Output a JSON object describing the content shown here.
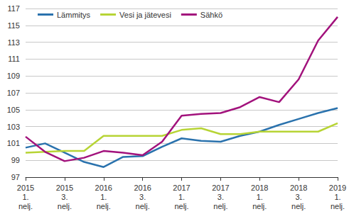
{
  "chart_data": {
    "type": "line",
    "categories": [
      "2015\n1.\nnelj.",
      null,
      "2015\n3.\nnelj.",
      null,
      "2016\n1.\nnelj.",
      null,
      "2016\n3.\nnelj.",
      null,
      "2017\n1.\nnelj.",
      null,
      "2017\n3.\nnelj.",
      null,
      "2018\n1.\nnelj.",
      null,
      "2018\n3.\nnelj.",
      null,
      "2019\n1.\nnelj."
    ],
    "series": [
      {
        "name": "Lämmitys",
        "color": "#2a72ad",
        "values": [
          100.5,
          101.0,
          99.9,
          98.8,
          98.2,
          99.4,
          99.5,
          100.6,
          101.6,
          101.3,
          101.2,
          101.9,
          102.4,
          103.2,
          103.9,
          104.6,
          105.2
        ]
      },
      {
        "name": "Vesi ja jätevesi",
        "color": "#b7d435",
        "values": [
          99.9,
          100.0,
          100.1,
          100.1,
          101.9,
          101.9,
          101.9,
          101.9,
          102.6,
          102.8,
          102.1,
          102.1,
          102.4,
          102.4,
          102.4,
          102.4,
          103.4
        ]
      },
      {
        "name": "Sähkö",
        "color": "#a2127c",
        "values": [
          101.8,
          100.0,
          98.9,
          99.3,
          100.1,
          99.9,
          99.6,
          101.2,
          104.3,
          104.5,
          104.6,
          105.3,
          106.5,
          105.9,
          108.6,
          113.2,
          116.0
        ]
      }
    ],
    "ylim": [
      97,
      117
    ],
    "yticks": [
      97,
      99,
      101,
      103,
      105,
      107,
      109,
      111,
      113,
      115,
      117
    ],
    "grid": true,
    "legend": "upper left"
  }
}
